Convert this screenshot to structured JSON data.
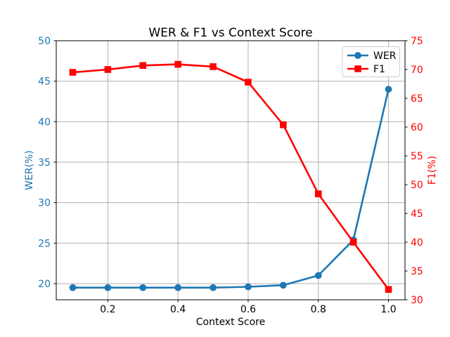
{
  "chart_data": {
    "type": "line",
    "title": "WER & F1 vs Context Score",
    "xlabel": "Context Score",
    "ylabel_left": "WER(%)",
    "ylabel_right": "F1(%)",
    "x": [
      0.1,
      0.2,
      0.3,
      0.4,
      0.5,
      0.6,
      0.7,
      0.8,
      0.9,
      1.0
    ],
    "series": [
      {
        "name": "WER",
        "axis": "left",
        "color": "#1f77b4",
        "marker": "circle",
        "values": [
          19.5,
          19.5,
          19.5,
          19.5,
          19.5,
          19.6,
          19.8,
          21.0,
          25.4,
          44.0
        ]
      },
      {
        "name": "F1",
        "axis": "right",
        "color": "#ff0000",
        "marker": "square",
        "values": [
          69.5,
          70.0,
          70.7,
          70.9,
          70.5,
          67.8,
          60.4,
          48.4,
          40.0,
          31.8
        ]
      }
    ],
    "xlim": [
      0.053,
      1.047
    ],
    "ylim_left": [
      18,
      50
    ],
    "ylim_right": [
      30,
      75
    ],
    "xticks": [
      "0.2",
      "0.4",
      "0.6",
      "0.8",
      "1.0"
    ],
    "yticks_left": [
      20,
      25,
      30,
      35,
      40,
      45,
      50
    ],
    "yticks_right": [
      30,
      35,
      40,
      45,
      50,
      55,
      60,
      65,
      70,
      75
    ],
    "grid": true,
    "grid_color": "#b0b0b0",
    "spine_color": "#000000",
    "text_color": "#000000",
    "background": "#ffffff",
    "axis_label_colors": {
      "left": "#1f77b4",
      "right": "#ff0000",
      "x": "#000000"
    },
    "legend": {
      "position": "upper right",
      "entries": [
        "WER",
        "F1"
      ]
    }
  }
}
